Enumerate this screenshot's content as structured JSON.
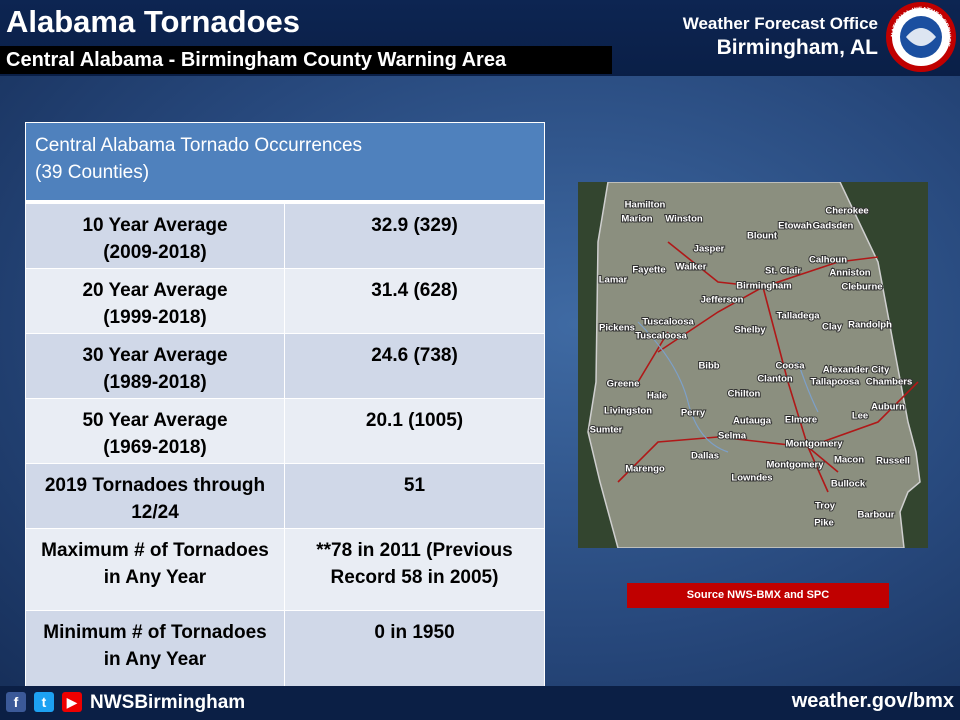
{
  "header": {
    "title": "Alabama Tornadoes",
    "subtitle": "Central Alabama - Birmingham County Warning Area",
    "office": "Weather Forecast Office",
    "location": "Birmingham, AL",
    "logo_text": "NATIONAL WEATHER SERVICE"
  },
  "table": {
    "header": [
      "Central Alabama Tornado Occurrences",
      "(39 Counties)"
    ],
    "rows": [
      [
        [
          "10 Year Average",
          "(2009-2018)"
        ],
        [
          "32.9  (329)"
        ]
      ],
      [
        [
          "20 Year Average",
          "(1999-2018)"
        ],
        [
          "31.4  (628)"
        ]
      ],
      [
        [
          "30 Year Average",
          "(1989-2018)"
        ],
        [
          "24.6  (738)"
        ]
      ],
      [
        [
          "50 Year Average",
          "(1969-2018)"
        ],
        [
          "20.1  (1005)"
        ]
      ],
      [
        [
          "2019 Tornadoes through",
          "12/24"
        ],
        [
          "51"
        ]
      ],
      [
        [
          "Maximum # of Tornadoes",
          "in Any Year"
        ],
        [
          "**78 in 2011  (Previous",
          "Record 58 in 2005)"
        ]
      ],
      [
        [
          "Minimum # of Tornadoes",
          "in Any Year"
        ],
        [
          "0 in 1950"
        ]
      ]
    ]
  },
  "map": {
    "labels": [
      "Hamilton",
      "Marion",
      "Winston",
      "Cherokee",
      "Etowah",
      "Gadsden",
      "Blount",
      "Jasper",
      "Fayette",
      "Walker",
      "Calhoun",
      "Lamar",
      "St. Clair",
      "Anniston",
      "Birmingham",
      "Cleburne",
      "Jefferson",
      "Talladega",
      "Tuscaloosa",
      "Tuscaloosa",
      "Pickens",
      "Shelby",
      "Clay",
      "Randolph",
      "Bibb",
      "Coosa",
      "Alexander City",
      "Clanton",
      "Greene",
      "Tallapoosa",
      "Chambers",
      "Hale",
      "Chilton",
      "Perry",
      "Livingston",
      "Autauga",
      "Elmore",
      "Lee",
      "Auburn",
      "Sumter",
      "Selma",
      "Montgomery",
      "Dallas",
      "Macon",
      "Montgomery",
      "Russell",
      "Marengo",
      "Lowndes",
      "Bullock",
      "Troy",
      "Barbour",
      "Pike"
    ],
    "source": "Source NWS-BMX and SPC"
  },
  "footer": {
    "handle": "NWSBirmingham",
    "url": "weather.gov/bmx"
  }
}
